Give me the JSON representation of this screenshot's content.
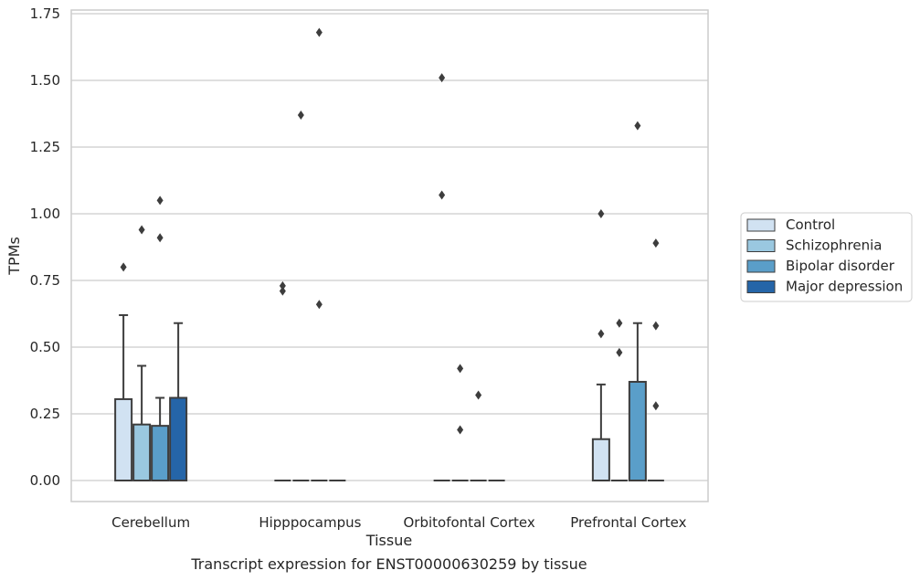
{
  "chart_data": {
    "type": "box",
    "title": "Transcript expression for ENST00000630259 by tissue",
    "xlabel": "Tissue",
    "ylabel": "TPMs",
    "ylim": [
      -0.08,
      1.76
    ],
    "yticks": [
      "0.00",
      "0.25",
      "0.50",
      "0.75",
      "1.00",
      "1.25",
      "1.50",
      "1.75"
    ],
    "grid": true,
    "legend_position": "right",
    "categories": [
      "Cerebellum",
      "Hipppocampus",
      "Orbitofontal Cortex",
      "Prefrontal Cortex"
    ],
    "series": [
      {
        "name": "Control",
        "color": "#d1e2f2",
        "boxes": [
          {
            "q1": 0,
            "q3": 0.305,
            "median": 0,
            "whisker_low": 0,
            "whisker_high": 0.62,
            "fliers": [
              0.8
            ]
          },
          {
            "q1": 0,
            "q3": 0,
            "median": 0,
            "whisker_low": 0,
            "whisker_high": 0,
            "fliers": [
              0.71,
              0.73
            ]
          },
          {
            "q1": 0,
            "q3": 0,
            "median": 0,
            "whisker_low": 0,
            "whisker_high": 0,
            "fliers": [
              1.07,
              1.51
            ]
          },
          {
            "q1": 0,
            "q3": 0.155,
            "median": 0,
            "whisker_low": 0,
            "whisker_high": 0.36,
            "fliers": [
              0.55,
              1.0
            ]
          }
        ]
      },
      {
        "name": "Schizophrenia",
        "color": "#9ac8e0",
        "boxes": [
          {
            "q1": 0,
            "q3": 0.21,
            "median": 0,
            "whisker_low": 0,
            "whisker_high": 0.43,
            "fliers": [
              0.94
            ]
          },
          {
            "q1": 0,
            "q3": 0,
            "median": 0,
            "whisker_low": 0,
            "whisker_high": 0,
            "fliers": [
              1.37
            ]
          },
          {
            "q1": 0,
            "q3": 0,
            "median": 0,
            "whisker_low": 0,
            "whisker_high": 0,
            "fliers": [
              0.19,
              0.42
            ]
          },
          {
            "q1": 0,
            "q3": 0,
            "median": 0,
            "whisker_low": 0,
            "whisker_high": 0,
            "fliers": [
              0.48,
              0.59
            ]
          }
        ]
      },
      {
        "name": "Bipolar disorder",
        "color": "#5a9ec9",
        "boxes": [
          {
            "q1": 0,
            "q3": 0.205,
            "median": 0,
            "whisker_low": 0,
            "whisker_high": 0.31,
            "fliers": [
              0.91,
              1.05
            ]
          },
          {
            "q1": 0,
            "q3": 0,
            "median": 0,
            "whisker_low": 0,
            "whisker_high": 0,
            "fliers": [
              0.66,
              1.68
            ]
          },
          {
            "q1": 0,
            "q3": 0,
            "median": 0,
            "whisker_low": 0,
            "whisker_high": 0,
            "fliers": [
              0.32
            ]
          },
          {
            "q1": 0,
            "q3": 0.37,
            "median": 0,
            "whisker_low": 0,
            "whisker_high": 0.59,
            "fliers": [
              1.33
            ]
          }
        ]
      },
      {
        "name": "Major depression",
        "color": "#2565a8",
        "boxes": [
          {
            "q1": 0,
            "q3": 0.31,
            "median": 0,
            "whisker_low": 0,
            "whisker_high": 0.59,
            "fliers": []
          },
          {
            "q1": 0,
            "q3": 0,
            "median": 0,
            "whisker_low": 0,
            "whisker_high": 0,
            "fliers": []
          },
          {
            "q1": 0,
            "q3": 0,
            "median": 0,
            "whisker_low": 0,
            "whisker_high": 0,
            "fliers": []
          },
          {
            "q1": 0,
            "q3": 0,
            "median": 0,
            "whisker_low": 0,
            "whisker_high": 0,
            "fliers": [
              0.28,
              0.58,
              0.89
            ]
          }
        ]
      }
    ]
  }
}
